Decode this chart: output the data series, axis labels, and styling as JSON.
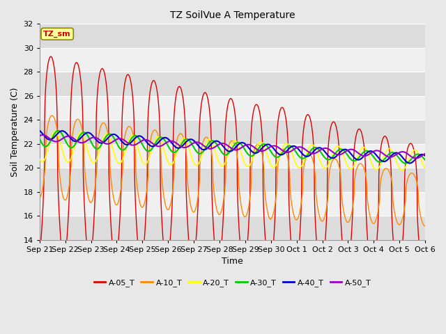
{
  "title": "TZ SoilVue A Temperature",
  "xlabel": "Time",
  "ylabel": "Soil Temperature (C)",
  "ylim": [
    14,
    32
  ],
  "yticks": [
    14,
    16,
    18,
    20,
    22,
    24,
    26,
    28,
    30,
    32
  ],
  "annotation_text": "TZ_sm",
  "annotation_color": "#cc0000",
  "annotation_bg": "#ffff99",
  "series": [
    "A-05_T",
    "A-10_T",
    "A-20_T",
    "A-30_T",
    "A-40_T",
    "A-50_T"
  ],
  "colors": [
    "#dd0000",
    "#ff8800",
    "#ffff00",
    "#00cc00",
    "#0000cc",
    "#9900cc"
  ],
  "background_color": "#e8e8e8",
  "plot_bg_light": "#f0f0f0",
  "plot_bg_dark": "#dcdcdc",
  "grid_color": "#ffffff",
  "n_points": 2000,
  "date_labels": [
    "Sep 21",
    "Sep 22",
    "Sep 23",
    "Sep 24",
    "Sep 25",
    "Sep 26",
    "Sep 27",
    "Sep 28",
    "Sep 29",
    "Sep 30",
    "Oct 1",
    "Oct 2",
    "Oct 3",
    "Oct 4",
    "Oct 5",
    "Oct 6"
  ]
}
